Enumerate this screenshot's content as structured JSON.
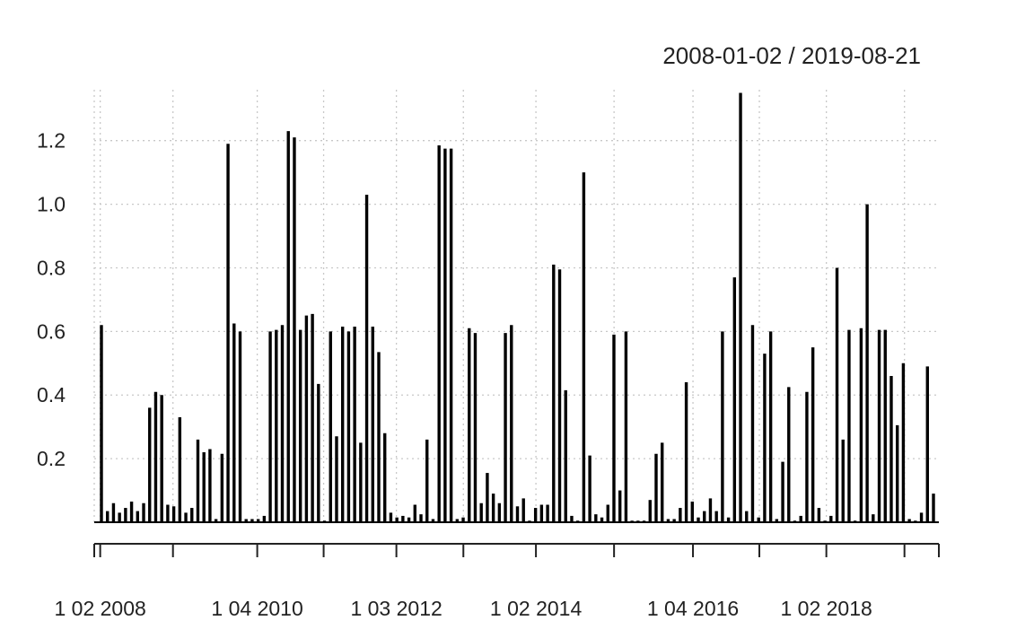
{
  "chart_data": {
    "type": "bar",
    "title": "2008-01-02 / 2019-08-21",
    "xlabel": "",
    "ylabel": "",
    "ylim": [
      0,
      1.36
    ],
    "y_ticks": [
      0.2,
      0.4,
      0.6,
      0.8,
      1.0,
      1.2
    ],
    "y_tick_labels": [
      "0.2",
      "0.4",
      "0.6",
      "0.8",
      "1.0",
      "1.2"
    ],
    "x_start": "2008-01-02",
    "x_end": "2019-08-21",
    "x_major_ticks": [
      "2008-02-01",
      "2010-04-01",
      "2012-03-01",
      "2014-02-01",
      "2016-04-01",
      "2018-02-01"
    ],
    "x_tick_labels": [
      "1 02 2008",
      "1 04 2010",
      "1 03 2012",
      "1 02 2014",
      "1 04 2016",
      "1 02 2018"
    ],
    "x_minor_ticks": [
      "2008-01-02",
      "2009-02-01",
      "2011-03-01",
      "2013-02-01",
      "2015-03-01",
      "2017-03-01",
      "2019-03-01",
      "2019-08-21"
    ],
    "grid": true,
    "legend": "none",
    "bar_color": "#000000",
    "grid_color": "#c8c8c8",
    "values": [
      0.62,
      0.035,
      0.06,
      0.03,
      0.045,
      0.065,
      0.035,
      0.06,
      0.36,
      0.41,
      0.4,
      0.055,
      0.05,
      0.33,
      0.03,
      0.045,
      0.26,
      0.22,
      0.23,
      0.01,
      0.215,
      1.19,
      0.625,
      0.6,
      0.01,
      0.01,
      0.01,
      0.02,
      0.6,
      0.605,
      0.62,
      1.23,
      1.21,
      0.605,
      0.65,
      0.655,
      0.435,
      0.005,
      0.6,
      0.27,
      0.615,
      0.6,
      0.615,
      0.25,
      1.03,
      0.615,
      0.535,
      0.28,
      0.03,
      0.015,
      0.02,
      0.015,
      0.055,
      0.025,
      0.26,
      0.01,
      1.185,
      1.175,
      1.175,
      0.01,
      0.015,
      0.61,
      0.595,
      0.06,
      0.155,
      0.09,
      0.06,
      0.595,
      0.62,
      0.05,
      0.075,
      0.005,
      0.045,
      0.055,
      0.055,
      0.81,
      0.795,
      0.415,
      0.02,
      0.005,
      1.1,
      0.21,
      0.025,
      0.015,
      0.055,
      0.59,
      0.1,
      0.6,
      0.005,
      0.005,
      0.005,
      0.07,
      0.215,
      0.25,
      0.01,
      0.01,
      0.045,
      0.44,
      0.065,
      0.015,
      0.035,
      0.075,
      0.035,
      0.6,
      0.015,
      0.77,
      1.35,
      0.035,
      0.62,
      0.015,
      0.53,
      0.6,
      0.01,
      0.19,
      0.425,
      0.005,
      0.02,
      0.41,
      0.55,
      0.045,
      0.005,
      0.02,
      0.8,
      0.26,
      0.605,
      0.005,
      0.61,
      1.0,
      0.025,
      0.605,
      0.605,
      0.46,
      0.305,
      0.5,
      0.01,
      0.005,
      0.03,
      0.49,
      0.09
    ]
  }
}
